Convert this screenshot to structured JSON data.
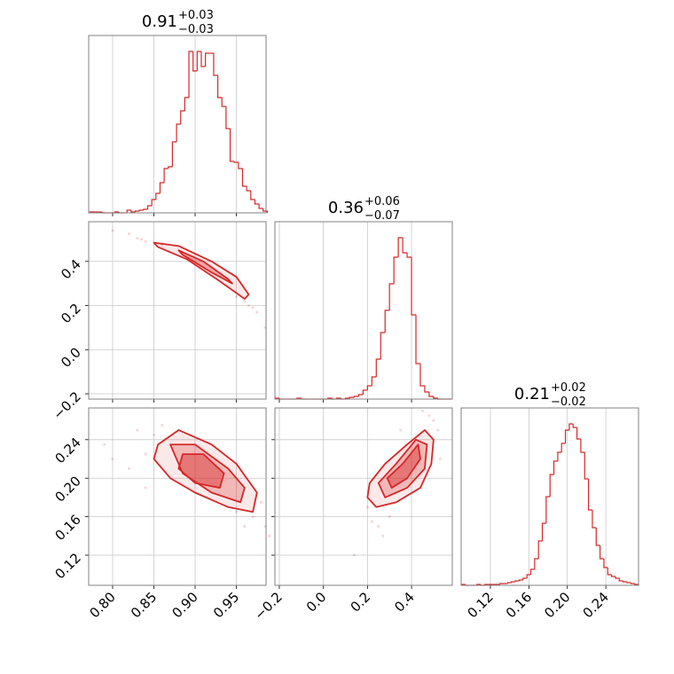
{
  "chart_data": [
    {
      "type": "histogram",
      "title": "0.91",
      "title_upper": "+0.03",
      "title_lower": "−0.03",
      "color": "#d62728",
      "grid": true,
      "bins": [
        0.7725,
        0.7775,
        0.7825,
        0.7875,
        0.7925,
        0.7975,
        0.8025,
        0.8075,
        0.8125,
        0.8175,
        0.8225,
        0.8275,
        0.8325,
        0.8375,
        0.8425,
        0.8475,
        0.8525,
        0.8575,
        0.8625,
        0.8675,
        0.8725,
        0.8775,
        0.8825,
        0.8875,
        0.8925,
        0.8975,
        0.9025,
        0.9075,
        0.9125,
        0.9175,
        0.9225,
        0.9275,
        0.9325,
        0.9375,
        0.9425,
        0.9475,
        0.9525,
        0.9575,
        0.9625,
        0.9675,
        0.9725,
        0.9775,
        0.9825,
        0.9875
      ],
      "counts": [
        1,
        1,
        1,
        0,
        0,
        0,
        1,
        0,
        0,
        3,
        1,
        2,
        3,
        4,
        8,
        15,
        22,
        34,
        50,
        52,
        80,
        100,
        115,
        130,
        182,
        160,
        182,
        165,
        180,
        180,
        155,
        130,
        120,
        95,
        58,
        57,
        50,
        30,
        25,
        15,
        10,
        5,
        2
      ],
      "xlim": [
        0.771,
        0.986
      ],
      "ylim": [
        0,
        200
      ],
      "xticks": [
        {
          "value": 0.8,
          "label": "0.80"
        },
        0.85,
        {
          "value": 0.9,
          "label": "0.90"
        },
        0.95
      ]
    },
    {
      "type": "contour",
      "color": "#d62728",
      "grid": true,
      "xlim": [
        0.771,
        0.986
      ],
      "ylim": [
        -0.224,
        0.58
      ],
      "xticks": [
        {
          "value": 0.8,
          "label": "0.80"
        },
        0.85,
        {
          "value": 0.9,
          "label": "0.90"
        },
        0.95
      ],
      "yticks": [
        {
          "value": -0.2,
          "label": "−0.2"
        },
        {
          "value": 0.0,
          "label": "0.0"
        },
        0.2,
        0.4
      ],
      "points": {
        "x": [
          0.8,
          0.82,
          0.835,
          0.84,
          0.96,
          0.97,
          0.975,
          0.985,
          0.86,
          0.95,
          0.83,
          0.965
        ],
        "y": [
          0.54,
          0.525,
          0.5,
          0.49,
          0.22,
          0.19,
          0.17,
          0.1,
          0.475,
          0.24,
          0.505,
          0.2
        ]
      },
      "contours": [
        {
          "fill": "rgba(214,39,40,0.10)",
          "x": [
            0.85,
            0.88,
            0.92,
            0.95,
            0.965,
            0.96,
            0.93,
            0.89,
            0.855
          ],
          "y": [
            0.485,
            0.47,
            0.4,
            0.33,
            0.25,
            0.23,
            0.31,
            0.41,
            0.465
          ]
        },
        {
          "fill": "rgba(214,39,40,0.35)",
          "x": [
            0.88,
            0.91,
            0.94,
            0.945,
            0.92,
            0.885
          ],
          "y": [
            0.45,
            0.4,
            0.32,
            0.3,
            0.35,
            0.43
          ]
        }
      ]
    },
    {
      "type": "histogram",
      "title": "0.36",
      "title_upper": "+0.06",
      "title_lower": "−0.07",
      "color": "#d62728",
      "grid": true,
      "bins": [
        -0.22,
        -0.2,
        -0.18,
        -0.16,
        -0.14,
        -0.12,
        -0.1,
        -0.08,
        -0.06,
        -0.04,
        -0.02,
        0.0,
        0.02,
        0.04,
        0.06,
        0.08,
        0.1,
        0.12,
        0.14,
        0.16,
        0.18,
        0.2,
        0.22,
        0.24,
        0.26,
        0.28,
        0.3,
        0.32,
        0.34,
        0.36,
        0.38,
        0.4,
        0.42,
        0.44,
        0.46,
        0.48,
        0.5,
        0.52,
        0.54,
        0.56,
        0.58
      ],
      "counts": [
        1,
        0,
        0,
        0,
        0,
        1,
        0,
        0,
        0,
        0,
        0,
        0,
        1,
        0,
        1,
        0,
        1,
        2,
        3,
        5,
        10,
        15,
        25,
        45,
        75,
        100,
        130,
        160,
        182,
        165,
        160,
        95,
        40,
        15,
        8,
        3,
        1,
        0,
        0,
        0
      ],
      "xlim": [
        -0.22,
        0.585
      ],
      "ylim": [
        0,
        200
      ],
      "xticks": [
        {
          "value": -0.2,
          "label": "−0.2"
        },
        {
          "value": 0.0,
          "label": "0.0"
        },
        0.2,
        0.4
      ]
    },
    {
      "type": "contour",
      "color": "#d62728",
      "grid": true,
      "xlim": [
        0.771,
        0.986
      ],
      "ylim": [
        0.0887,
        0.273
      ],
      "xticks": [
        {
          "value": 0.8,
          "label": "0.80"
        },
        0.85,
        {
          "value": 0.9,
          "label": "0.90"
        },
        0.95
      ],
      "yticks": [
        0.12,
        0.16,
        {
          "value": 0.2,
          "label": "0.20"
        },
        0.24
      ],
      "points": {
        "x": [
          0.79,
          0.82,
          0.83,
          0.84,
          0.985,
          0.98,
          0.85,
          0.97,
          0.86,
          0.96,
          0.8,
          0.84,
          0.95,
          0.99
        ],
        "y": [
          0.235,
          0.21,
          0.25,
          0.19,
          0.15,
          0.175,
          0.245,
          0.16,
          0.255,
          0.15,
          0.22,
          0.225,
          0.165,
          0.14
        ]
      },
      "contours": [
        {
          "fill": "rgba(214,39,40,0.10)",
          "x": [
            0.855,
            0.88,
            0.92,
            0.95,
            0.975,
            0.97,
            0.94,
            0.9,
            0.87,
            0.85
          ],
          "y": [
            0.235,
            0.25,
            0.235,
            0.215,
            0.185,
            0.165,
            0.17,
            0.185,
            0.2,
            0.22
          ]
        },
        {
          "fill": "rgba(214,39,40,0.25)",
          "x": [
            0.87,
            0.9,
            0.94,
            0.96,
            0.955,
            0.92,
            0.885
          ],
          "y": [
            0.235,
            0.235,
            0.21,
            0.19,
            0.175,
            0.185,
            0.205
          ]
        },
        {
          "fill": "rgba(214,39,40,0.45)",
          "x": [
            0.885,
            0.91,
            0.935,
            0.93,
            0.9,
            0.88
          ],
          "y": [
            0.225,
            0.225,
            0.205,
            0.19,
            0.195,
            0.21
          ]
        }
      ]
    },
    {
      "type": "contour",
      "color": "#d62728",
      "grid": true,
      "xlim": [
        -0.22,
        0.585
      ],
      "ylim": [
        0.0887,
        0.273
      ],
      "xticks": [
        {
          "value": -0.2,
          "label": "−0.2"
        },
        {
          "value": 0.0,
          "label": "0.0"
        },
        0.2,
        0.4
      ],
      "yticks": [
        0.12,
        0.16,
        {
          "value": 0.2,
          "label": "0.20"
        },
        0.24
      ],
      "points": {
        "x": [
          0.14,
          0.22,
          0.25,
          0.2,
          0.5,
          0.52,
          0.48,
          0.3,
          0.45,
          0.23,
          0.53,
          0.35,
          0.27
        ],
        "y": [
          0.12,
          0.155,
          0.15,
          0.17,
          0.26,
          0.25,
          0.265,
          0.16,
          0.27,
          0.2,
          0.22,
          0.25,
          0.14
        ]
      },
      "contours": [
        {
          "fill": "rgba(214,39,40,0.10)",
          "x": [
            0.21,
            0.28,
            0.38,
            0.46,
            0.5,
            0.49,
            0.44,
            0.33,
            0.24,
            0.2
          ],
          "y": [
            0.195,
            0.215,
            0.235,
            0.25,
            0.24,
            0.215,
            0.19,
            0.175,
            0.17,
            0.18
          ]
        },
        {
          "fill": "rgba(214,39,40,0.25)",
          "x": [
            0.25,
            0.33,
            0.42,
            0.47,
            0.46,
            0.38,
            0.28
          ],
          "y": [
            0.195,
            0.215,
            0.24,
            0.235,
            0.21,
            0.19,
            0.18
          ]
        },
        {
          "fill": "rgba(214,39,40,0.45)",
          "x": [
            0.29,
            0.36,
            0.43,
            0.44,
            0.38,
            0.31
          ],
          "y": [
            0.2,
            0.215,
            0.235,
            0.22,
            0.2,
            0.19
          ]
        }
      ]
    },
    {
      "type": "histogram",
      "title": "0.21",
      "title_upper": "+0.02",
      "title_lower": "−0.02",
      "color": "#d62728",
      "grid": true,
      "bins": [
        0.09,
        0.094,
        0.098,
        0.102,
        0.106,
        0.11,
        0.114,
        0.118,
        0.122,
        0.126,
        0.13,
        0.134,
        0.138,
        0.142,
        0.146,
        0.15,
        0.154,
        0.158,
        0.162,
        0.166,
        0.17,
        0.174,
        0.178,
        0.182,
        0.186,
        0.19,
        0.194,
        0.198,
        0.202,
        0.206,
        0.21,
        0.214,
        0.218,
        0.222,
        0.226,
        0.23,
        0.234,
        0.238,
        0.242,
        0.246,
        0.25,
        0.254,
        0.258,
        0.262,
        0.266,
        0.27,
        0.274
      ],
      "counts": [
        1,
        0,
        0,
        0,
        1,
        0,
        1,
        1,
        1,
        1,
        2,
        2,
        3,
        4,
        5,
        6,
        8,
        12,
        18,
        30,
        50,
        70,
        100,
        125,
        140,
        150,
        160,
        175,
        182,
        178,
        165,
        150,
        120,
        85,
        65,
        45,
        30,
        20,
        12,
        10,
        8,
        5,
        4,
        3,
        2,
        1
      ],
      "xlim": [
        0.0896,
        0.274
      ],
      "ylim": [
        0,
        200
      ],
      "xticks": [
        0.12,
        0.16,
        {
          "value": 0.2,
          "label": "0.20"
        },
        0.24
      ]
    }
  ]
}
